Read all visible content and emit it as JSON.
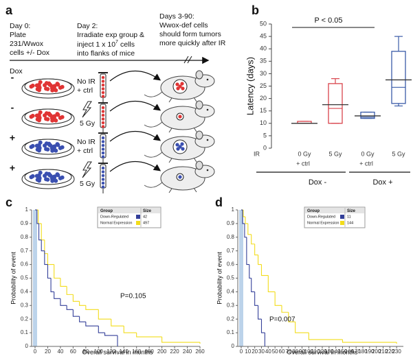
{
  "panel_labels": [
    "a",
    "b",
    "c",
    "d"
  ],
  "diagram": {
    "day0": [
      "Day 0:",
      "Plate",
      "231/Wwox",
      "cells +/- Dox"
    ],
    "day2": [
      "Day 2:",
      "Irradiate exp group &",
      "into flanks of mice"
    ],
    "inject_line": [
      "inject 1 x 10",
      "7",
      "cells"
    ],
    "days3": [
      "Days 3-90:",
      "Wwox-def cells",
      "should form tumors",
      "more quickly after IR"
    ],
    "dox_label": "Dox",
    "rows": [
      {
        "sign": "-",
        "treatment": [
          "No IR",
          "+ ctrl"
        ],
        "color": "#e03434"
      },
      {
        "sign": "-",
        "treatment": [
          "5 Gy"
        ],
        "color": "#e03434"
      },
      {
        "sign": "+",
        "treatment": [
          "No IR",
          "+ ctrl"
        ],
        "color": "#3a4fb0"
      },
      {
        "sign": "+",
        "treatment": [
          "5 Gy"
        ],
        "color": "#3a4fb0"
      }
    ]
  },
  "chart_data": [
    {
      "type": "box",
      "y_label": "Latency (days)",
      "ylim": [
        0,
        50
      ],
      "yticks": [
        0,
        5,
        10,
        15,
        20,
        25,
        30,
        35,
        40,
        45,
        50
      ],
      "row_label": "IR",
      "categories": [
        "0 Gy",
        "5 Gy",
        "0 Gy",
        "5 Gy"
      ],
      "colors": [
        "#d9434b",
        "#d9434b",
        "#3a5ba8",
        "#3a5ba8"
      ],
      "boxes": [
        {
          "min": 10,
          "q1": 10,
          "median": 10,
          "q3": 10.8,
          "max": 10.8,
          "mean": 10
        },
        {
          "min": 10,
          "q1": 10,
          "median": 16,
          "q3": 26,
          "max": 28,
          "mean": 17.5
        },
        {
          "min": 12,
          "q1": 12,
          "median": 12.5,
          "q3": 14.5,
          "max": 14.5,
          "mean": 13
        },
        {
          "min": 17,
          "q1": 18,
          "median": 24.5,
          "q3": 39,
          "max": 45,
          "mean": 27.5
        }
      ],
      "subgroups": [
        {
          "label": "+ ctrl",
          "color": "#d9434b"
        },
        {
          "label": "+ ctrl",
          "color": "#3a5ba8"
        }
      ],
      "groups": [
        {
          "label": "Dox -",
          "color": "#d9434b"
        },
        {
          "label": "Dox +",
          "color": "#3a5ba8"
        }
      ],
      "annotation": "P < 0.05"
    },
    {
      "type": "line",
      "step": true,
      "x_label": "Overall survival in months",
      "y_label": "Probability of event",
      "xlim": [
        0,
        260
      ],
      "xticks": [
        0,
        20,
        40,
        60,
        80,
        100,
        120,
        140,
        160,
        180,
        200,
        220,
        240,
        260
      ],
      "ylim": [
        0,
        1
      ],
      "yticks": [
        0,
        0.1,
        0.2,
        0.3,
        0.4,
        0.5,
        0.6,
        0.7,
        0.8,
        0.9,
        1
      ],
      "legend_headers": [
        "Group",
        "Size"
      ],
      "series": [
        {
          "name": "Down-Regulated",
          "color": "#333f99",
          "size": 42,
          "x": [
            0,
            3,
            6,
            10,
            15,
            20,
            25,
            30,
            40,
            50,
            60,
            70,
            80,
            100,
            110,
            130
          ],
          "values": [
            1,
            0.9,
            0.78,
            0.7,
            0.6,
            0.5,
            0.4,
            0.35,
            0.3,
            0.27,
            0.22,
            0.18,
            0.15,
            0.1,
            0.08,
            0
          ]
        },
        {
          "name": "Normal Expression",
          "color": "#f2dc1a",
          "size": 497,
          "x": [
            0,
            5,
            10,
            15,
            20,
            30,
            40,
            50,
            60,
            70,
            80,
            100,
            120,
            140,
            160,
            200,
            260
          ],
          "values": [
            1,
            0.9,
            0.78,
            0.68,
            0.6,
            0.5,
            0.44,
            0.38,
            0.33,
            0.3,
            0.27,
            0.2,
            0.15,
            0.1,
            0.07,
            0.03,
            0.02
          ]
        }
      ],
      "annotation": "P=0.105"
    },
    {
      "type": "line",
      "step": true,
      "x_label": "Overall survival in months",
      "y_label": "Probability of event",
      "xlim": [
        0,
        240
      ],
      "xticks": [
        0,
        10,
        20,
        30,
        40,
        50,
        60,
        70,
        80,
        90,
        100,
        110,
        120,
        130,
        140,
        150,
        160,
        170,
        180,
        190,
        200,
        210,
        220,
        230
      ],
      "ylim": [
        0,
        1
      ],
      "yticks": [
        0,
        0.1,
        0.2,
        0.3,
        0.4,
        0.5,
        0.6,
        0.7,
        0.8,
        0.9,
        1
      ],
      "legend_headers": [
        "Group",
        "Size"
      ],
      "series": [
        {
          "name": "Down-Regulated",
          "color": "#333f99",
          "size": 11,
          "x": [
            0,
            2,
            5,
            8,
            12,
            15,
            20,
            25,
            30,
            35
          ],
          "values": [
            1,
            0.9,
            0.8,
            0.6,
            0.5,
            0.4,
            0.3,
            0.2,
            0.1,
            0
          ]
        },
        {
          "name": "Normal Expression",
          "color": "#f2dc1a",
          "size": 144,
          "x": [
            0,
            3,
            6,
            10,
            15,
            20,
            25,
            30,
            40,
            50,
            60,
            70,
            80,
            100,
            150,
            230
          ],
          "values": [
            1,
            0.95,
            0.9,
            0.82,
            0.75,
            0.67,
            0.6,
            0.52,
            0.4,
            0.3,
            0.25,
            0.18,
            0.1,
            0.05,
            0.03,
            0.02
          ]
        }
      ],
      "annotation": "P=0.007"
    }
  ]
}
